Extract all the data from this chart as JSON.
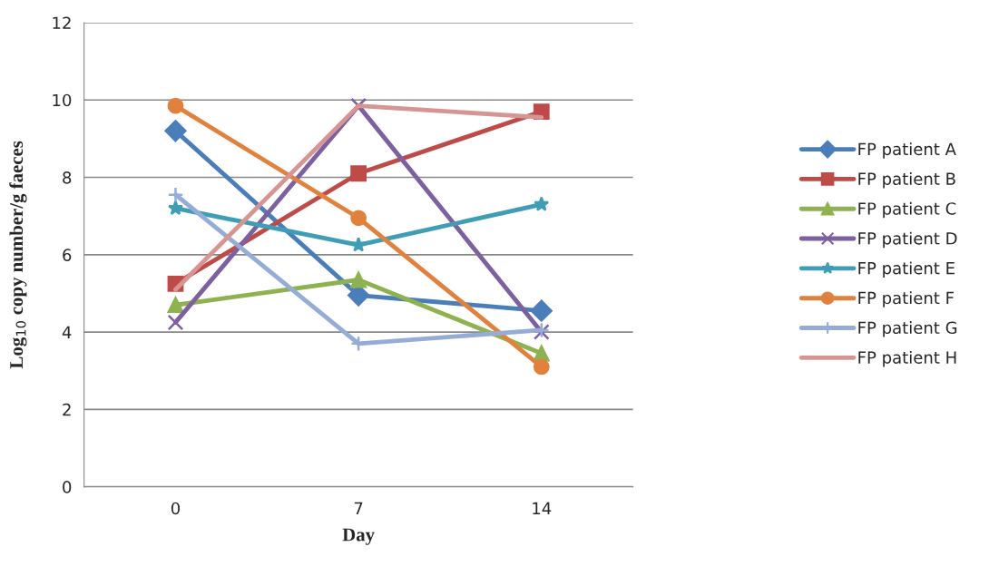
{
  "chart_data": {
    "type": "line",
    "xlabel": "Day",
    "ylabel": "Log$_{10}$ copy number/g faeces",
    "categories": [
      "0",
      "7",
      "14"
    ],
    "ylim": [
      0,
      12
    ],
    "yticks": [
      0,
      2,
      4,
      6,
      8,
      10,
      12
    ],
    "grid": "y",
    "legend": "right",
    "line_style": "solid",
    "series": [
      {
        "name": "FP patient A",
        "color": "#4a7ebb",
        "marker": "diamond",
        "values": [
          9.2,
          4.95,
          4.55
        ]
      },
      {
        "name": "FP patient B",
        "color": "#be4b48",
        "marker": "square",
        "values": [
          5.25,
          8.1,
          9.7
        ]
      },
      {
        "name": "FP patient C",
        "color": "#8eb24f",
        "marker": "triangle",
        "values": [
          4.7,
          5.35,
          3.45
        ]
      },
      {
        "name": "FP patient D",
        "color": "#7d60a0",
        "marker": "cross",
        "values": [
          4.25,
          9.85,
          4.0
        ]
      },
      {
        "name": "FP patient E",
        "color": "#3f9db5",
        "marker": "star",
        "values": [
          7.2,
          6.25,
          7.3
        ]
      },
      {
        "name": "FP patient F",
        "color": "#e0823d",
        "marker": "circle",
        "values": [
          9.85,
          6.95,
          3.1
        ]
      },
      {
        "name": "FP patient G",
        "color": "#95add6",
        "marker": "plus",
        "values": [
          7.55,
          3.7,
          4.05
        ]
      },
      {
        "name": "FP patient H",
        "color": "#d69593",
        "marker": "none",
        "values": [
          5.1,
          9.85,
          9.55
        ]
      }
    ]
  }
}
